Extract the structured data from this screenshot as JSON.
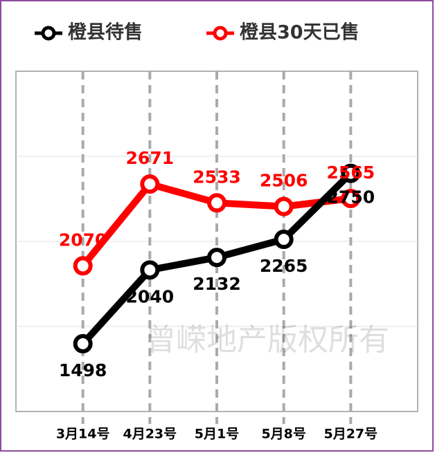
{
  "chart_data": {
    "type": "line",
    "categories": [
      "3月14号",
      "4月23号",
      "5月1号",
      "5月8号",
      "5月27号"
    ],
    "series": [
      {
        "name": "橙县待售",
        "color": "#000000",
        "values": [
          1498,
          2040,
          2132,
          2265,
          2750
        ]
      },
      {
        "name": "橙县30天已售",
        "color": "#ff0000",
        "values": [
          2070,
          2671,
          2533,
          2506,
          2565
        ]
      }
    ],
    "ylim": [
      1000,
      3500
    ],
    "yticks": [
      1625,
      2250,
      2875
    ],
    "grid": true,
    "legend": "top",
    "annotations": [
      "曾嵘地产版权所有"
    ]
  }
}
